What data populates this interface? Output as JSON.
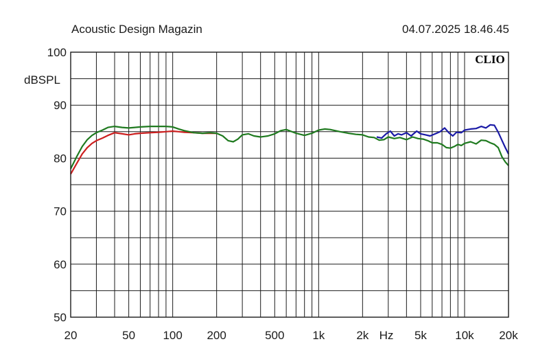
{
  "header": {
    "title": "Acoustic Design Magazin",
    "timestamp": "04.07.2025 18.46.45"
  },
  "chart_data": {
    "type": "line",
    "brand": "CLIO",
    "ylabel": "dBSPL",
    "xlabel": "Hz",
    "x_scale": "log",
    "xlim": [
      20,
      20000
    ],
    "ylim": [
      50,
      100
    ],
    "grid": true,
    "y_ticks": [
      50,
      60,
      70,
      80,
      90,
      100
    ],
    "y_grid_step": 5,
    "x_ticks": [
      {
        "v": 20,
        "label": "20"
      },
      {
        "v": 50,
        "label": "50"
      },
      {
        "v": 100,
        "label": "100"
      },
      {
        "v": 200,
        "label": "200"
      },
      {
        "v": 500,
        "label": "500"
      },
      {
        "v": 1000,
        "label": "1k"
      },
      {
        "v": 2000,
        "label": "2k"
      },
      {
        "v": 5000,
        "label": "5k"
      },
      {
        "v": 10000,
        "label": "10k"
      },
      {
        "v": 20000,
        "label": "20k"
      }
    ],
    "colors": {
      "red": "#cc1f1f",
      "green": "#1f7a1f",
      "blue": "#1a1aa6",
      "grid": "#1a1a1a"
    },
    "series": [
      {
        "color": "#1a1aa6",
        "x": [
          2500,
          2700,
          2900,
          3100,
          3300,
          3500,
          3700,
          4000,
          4300,
          4700,
          5000,
          5400,
          5800,
          6300,
          6800,
          7300,
          7800,
          8300,
          8800,
          9500,
          10000,
          11000,
          12000,
          13000,
          14000,
          15000,
          16000,
          17000,
          18000,
          19000,
          20000
        ],
        "y": [
          84.0,
          83.8,
          84.6,
          85.1,
          84.2,
          84.6,
          84.4,
          84.8,
          84.2,
          85.1,
          84.6,
          84.4,
          84.2,
          84.6,
          85.0,
          85.7,
          84.8,
          84.2,
          84.9,
          84.8,
          85.3,
          85.5,
          85.6,
          86.0,
          85.7,
          86.3,
          86.2,
          84.9,
          83.4,
          82.0,
          80.8
        ]
      },
      {
        "color": "#cc1f1f",
        "x": [
          20,
          22,
          24,
          26,
          28,
          30,
          33,
          36,
          40,
          45,
          50,
          55,
          60,
          70,
          80,
          90,
          100,
          110,
          120,
          140,
          160,
          180,
          200
        ],
        "y": [
          77.0,
          79.0,
          80.8,
          82.0,
          82.8,
          83.3,
          83.8,
          84.3,
          84.8,
          84.6,
          84.4,
          84.6,
          84.7,
          84.8,
          84.9,
          85.0,
          85.1,
          85.0,
          84.9,
          84.8,
          84.7,
          84.7,
          84.7
        ]
      },
      {
        "color": "#1f7a1f",
        "x": [
          20,
          22,
          24,
          26,
          28,
          30,
          33,
          36,
          40,
          45,
          50,
          55,
          60,
          70,
          80,
          90,
          100,
          110,
          120,
          140,
          160,
          180,
          200,
          220,
          240,
          260,
          280,
          300,
          330,
          360,
          400,
          450,
          500,
          550,
          600,
          700,
          800,
          900,
          1000,
          1100,
          1200,
          1400,
          1600,
          1800,
          2000,
          2200,
          2400,
          2600,
          2800,
          3000,
          3300,
          3600,
          4000,
          4400,
          4800,
          5200,
          5600,
          6000,
          6500,
          7000,
          7500,
          8000,
          8500,
          9000,
          9500,
          10000,
          11000,
          12000,
          13000,
          14000,
          15000,
          16000,
          17000,
          18000,
          19000,
          20000
        ],
        "y": [
          78.0,
          80.3,
          82.2,
          83.5,
          84.3,
          84.8,
          85.3,
          85.8,
          86.0,
          85.8,
          85.7,
          85.8,
          85.9,
          86.0,
          86.0,
          86.0,
          85.9,
          85.5,
          85.2,
          84.8,
          84.7,
          84.8,
          84.7,
          84.2,
          83.3,
          83.1,
          83.6,
          84.4,
          84.6,
          84.2,
          84.0,
          84.2,
          84.6,
          85.2,
          85.4,
          84.7,
          84.3,
          84.7,
          85.3,
          85.5,
          85.4,
          85.0,
          84.7,
          84.5,
          84.4,
          84.0,
          83.9,
          83.4,
          83.5,
          84.0,
          83.7,
          83.9,
          83.5,
          84.0,
          83.7,
          83.6,
          83.3,
          82.9,
          82.9,
          82.6,
          82.0,
          81.9,
          82.2,
          82.6,
          82.4,
          82.8,
          83.1,
          82.7,
          83.4,
          83.3,
          82.9,
          82.6,
          82.0,
          80.3,
          79.3,
          78.6
        ]
      }
    ]
  }
}
